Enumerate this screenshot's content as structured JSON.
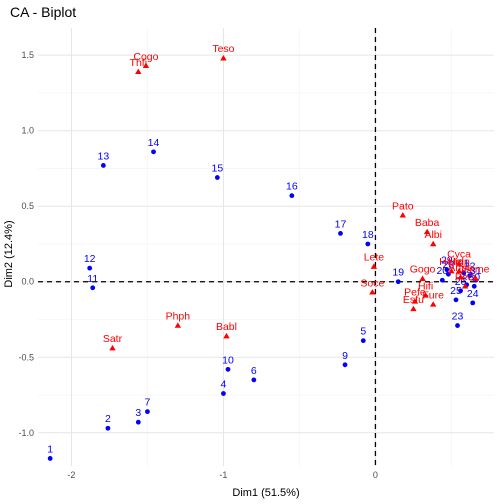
{
  "chart_data": {
    "type": "scatter",
    "title": "CA - Biplot",
    "xlabel": "Dim1 (51.5%)",
    "ylabel": "Dim2 (12.4%)",
    "xlim": [
      -2.22,
      0.78
    ],
    "ylim": [
      -1.22,
      1.68
    ],
    "x_ticks": [
      -2,
      -1,
      0
    ],
    "x_tick_labels": [
      "-2",
      "-1",
      "0"
    ],
    "y_ticks": [
      -1.0,
      -0.5,
      0.0,
      0.5,
      1.0,
      1.5
    ],
    "y_tick_labels": [
      "-1.0",
      "-0.5",
      "0.0",
      "0.5",
      "1.0",
      "1.5"
    ],
    "grid": true,
    "reference_lines": {
      "x": 0,
      "y": 0
    },
    "colors": {
      "rows": "#0000ff",
      "columns": "#ff0000"
    },
    "series": [
      {
        "kind": "rows",
        "marker": "circle",
        "points": [
          {
            "label": "1",
            "x": -2.14,
            "y": -1.17
          },
          {
            "label": "2",
            "x": -1.76,
            "y": -0.97
          },
          {
            "label": "3",
            "x": -1.56,
            "y": -0.93
          },
          {
            "label": "4",
            "x": -1.0,
            "y": -0.74
          },
          {
            "label": "5",
            "x": -0.08,
            "y": -0.39
          },
          {
            "label": "7",
            "x": -1.5,
            "y": -0.86
          },
          {
            "label": "6",
            "x": -0.8,
            "y": -0.65
          },
          {
            "label": "9",
            "x": -0.2,
            "y": -0.55
          },
          {
            "label": "10",
            "x": -0.97,
            "y": -0.58
          },
          {
            "label": "11",
            "x": -1.86,
            "y": -0.04
          },
          {
            "label": "12",
            "x": -1.88,
            "y": 0.09
          },
          {
            "label": "13",
            "x": -1.79,
            "y": 0.77
          },
          {
            "label": "14",
            "x": -1.46,
            "y": 0.86
          },
          {
            "label": "15",
            "x": -1.04,
            "y": 0.69
          },
          {
            "label": "16",
            "x": -0.55,
            "y": 0.57
          },
          {
            "label": "17",
            "x": -0.23,
            "y": 0.32
          },
          {
            "label": "18",
            "x": -0.05,
            "y": 0.25
          },
          {
            "label": "19",
            "x": 0.15,
            "y": 0.0
          },
          {
            "label": "20",
            "x": 0.44,
            "y": 0.01
          },
          {
            "label": "21",
            "x": 0.58,
            "y": 0.06
          },
          {
            "label": "22",
            "x": 0.62,
            "y": 0.04
          },
          {
            "label": "23",
            "x": 0.54,
            "y": -0.29
          },
          {
            "label": "24",
            "x": 0.64,
            "y": -0.14
          },
          {
            "label": "25",
            "x": 0.53,
            "y": -0.12
          },
          {
            "label": "26",
            "x": 0.56,
            "y": -0.06
          },
          {
            "label": "27",
            "x": 0.6,
            "y": -0.02
          },
          {
            "label": "28",
            "x": 0.48,
            "y": 0.05
          },
          {
            "label": "29",
            "x": 0.47,
            "y": 0.08
          },
          {
            "label": "30",
            "x": 0.65,
            "y": -0.03
          },
          {
            "label": "31",
            "x": 0.66,
            "y": 0.01
          }
        ]
      },
      {
        "kind": "columns",
        "marker": "triangle",
        "points": [
          {
            "label": "Cogo",
            "x": -1.51,
            "y": 1.43
          },
          {
            "label": "Thfi",
            "x": -1.56,
            "y": 1.39
          },
          {
            "label": "Teso",
            "x": -1.0,
            "y": 1.48
          },
          {
            "label": "Pato",
            "x": 0.18,
            "y": 0.44
          },
          {
            "label": "Baba",
            "x": 0.34,
            "y": 0.33
          },
          {
            "label": "Albi",
            "x": 0.38,
            "y": 0.25
          },
          {
            "label": "Lete",
            "x": -0.01,
            "y": 0.1
          },
          {
            "label": "Soce",
            "x": -0.02,
            "y": -0.07
          },
          {
            "label": "Gogo",
            "x": 0.31,
            "y": 0.02
          },
          {
            "label": "Pefe",
            "x": 0.26,
            "y": -0.13
          },
          {
            "label": "Esfu",
            "x": 0.25,
            "y": -0.18
          },
          {
            "label": "Hifi",
            "x": 0.33,
            "y": -0.09
          },
          {
            "label": "Fure",
            "x": 0.38,
            "y": -0.15
          },
          {
            "label": "Peci",
            "x": 0.59,
            "y": -0.03
          },
          {
            "label": "Cyca",
            "x": 0.55,
            "y": 0.12
          },
          {
            "label": "Heim",
            "x": 0.5,
            "y": 0.07
          },
          {
            "label": "Heln",
            "x": 0.55,
            "y": 0.07
          },
          {
            "label": "Anpe",
            "x": 0.56,
            "y": 0.03
          },
          {
            "label": "Seme",
            "x": 0.66,
            "y": 0.02
          },
          {
            "label": "Phph",
            "x": -1.3,
            "y": -0.29
          },
          {
            "label": "Babl",
            "x": -0.98,
            "y": -0.36
          },
          {
            "label": "Satr",
            "x": -1.73,
            "y": -0.44
          }
        ]
      }
    ]
  }
}
